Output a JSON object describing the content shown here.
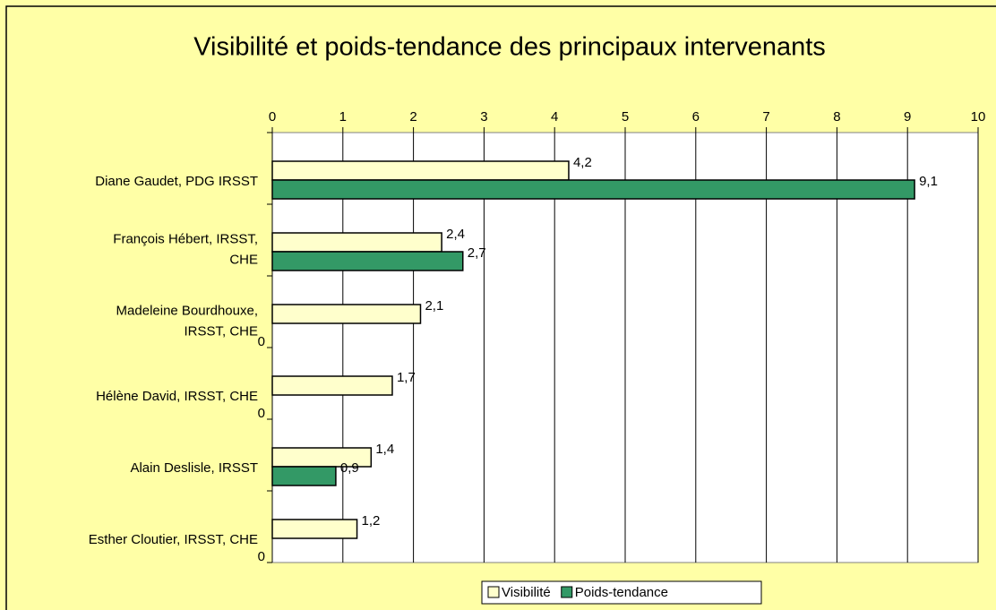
{
  "chart_data": {
    "type": "bar",
    "orientation": "horizontal",
    "title": "Visibilité et poids-tendance des principaux intervenants",
    "categories": [
      "Diane Gaudet, PDG IRSST",
      "François Hébert, IRSST,\nCHE",
      "Madeleine Bourdhouxe,\nIRSST, CHE",
      "Hélène David, IRSST, CHE",
      "Alain Deslisle, IRSST",
      "Esther Cloutier, IRSST, CHE"
    ],
    "series": [
      {
        "name": "Visibilité",
        "color": "#ffffcc",
        "values": [
          4.2,
          2.4,
          2.1,
          1.7,
          1.4,
          1.2
        ],
        "value_labels": [
          "4,2",
          "2,4",
          "2,1",
          "1,7",
          "1,4",
          "1,2"
        ]
      },
      {
        "name": "Poids-tendance",
        "color": "#339966",
        "values": [
          9.1,
          2.7,
          0,
          0,
          0.9,
          0
        ],
        "value_labels": [
          "9,1",
          "2,7",
          "0",
          "0",
          "0,9",
          "0"
        ]
      }
    ],
    "xlim": [
      0,
      10
    ],
    "xticks": [
      0,
      1,
      2,
      3,
      4,
      5,
      6,
      7,
      8,
      9,
      10
    ],
    "grid": true,
    "legend": "bottom"
  }
}
